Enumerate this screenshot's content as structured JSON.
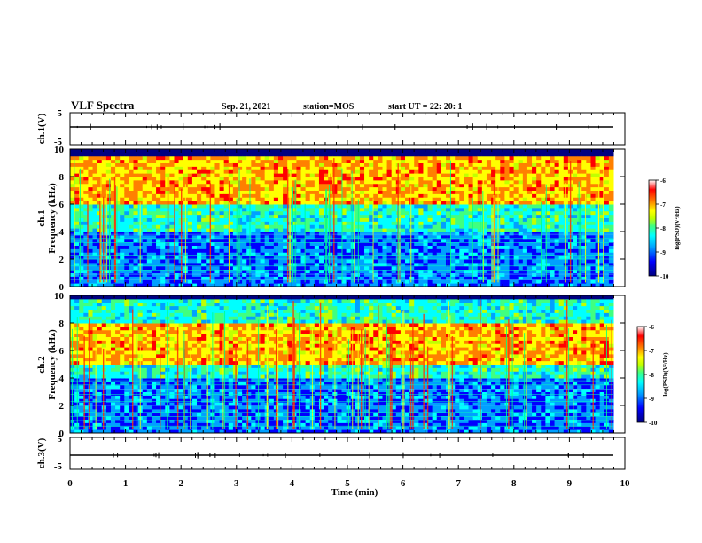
{
  "chart_data": {
    "type": "heatmap",
    "header": {
      "title": "VLF Spectra",
      "date": "Sep. 21, 2021",
      "station": "station=MOS",
      "start": "start  UT =  22: 20: 1"
    },
    "xlabel": "Time  (min)",
    "xlim": [
      0,
      10
    ],
    "xticks": [
      "0",
      "1",
      "2",
      "3",
      "4",
      "5",
      "6",
      "7",
      "8",
      "9",
      "10"
    ],
    "panels": [
      {
        "kind": "waveform",
        "ylabel": "ch.1(V)",
        "ylim": [
          -5,
          5
        ],
        "yticks": [
          "5",
          "-5"
        ],
        "level": 0
      },
      {
        "kind": "spectrogram",
        "ylabel_top": "ch.1",
        "ylabel": "Frequency  (kHz)",
        "ylim": [
          0,
          10
        ],
        "yticks": [
          "0",
          "2",
          "4",
          "6",
          "8",
          "10"
        ],
        "peak_band_khz": [
          6,
          9.5
        ],
        "cutoff_khz": 9.5,
        "colorbar": {
          "label": "log(PSD)(V²/Hz)",
          "ticks": [
            "-6",
            "-7",
            "-8",
            "-9",
            "-10"
          ]
        }
      },
      {
        "kind": "spectrogram",
        "ylabel_top": "ch.2",
        "ylabel": "Frequency  (kHz)",
        "ylim": [
          0,
          10
        ],
        "yticks": [
          "0",
          "2",
          "4",
          "6",
          "8",
          "10"
        ],
        "peak_band_khz": [
          5,
          8
        ],
        "cutoff_khz": 9.8,
        "colorbar": {
          "label": "log(PSD)(V²/Hz)",
          "ticks": [
            "-6",
            "-7",
            "-8",
            "-9",
            "-10"
          ]
        }
      },
      {
        "kind": "waveform",
        "ylabel": "ch.3(V)",
        "ylim": [
          -5,
          5
        ],
        "yticks": [
          "5",
          "-5"
        ],
        "level": 0
      }
    ],
    "colormap": [
      "#000080",
      "#0000ff",
      "#00a0ff",
      "#00ffff",
      "#40ff80",
      "#c0ff00",
      "#ffff00",
      "#ff8000",
      "#ff0000",
      "#ffffff"
    ]
  }
}
